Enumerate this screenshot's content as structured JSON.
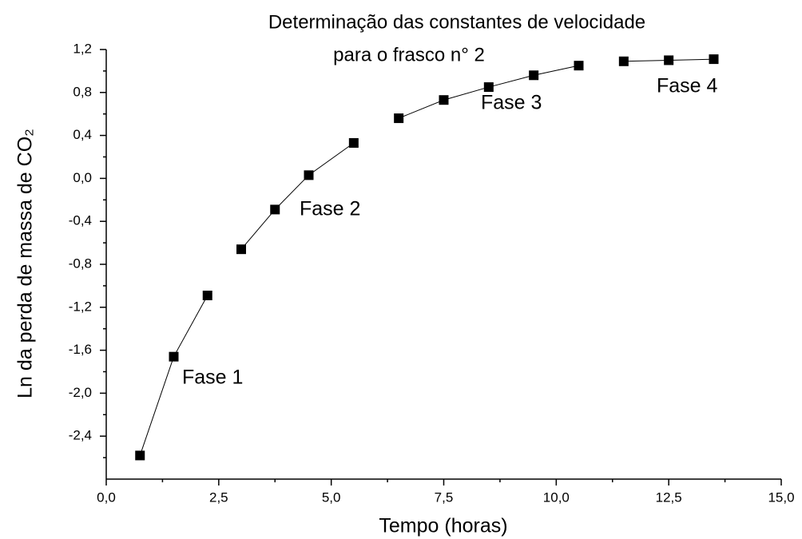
{
  "chart_data": {
    "type": "line",
    "title": [
      "Determinação das constantes de velocidade",
      "para o frasco n° 2"
    ],
    "x_label": "Tempo (horas)",
    "y_label": "Ln da perda de massa de CO₂",
    "xlim": [
      0,
      15
    ],
    "ylim": [
      -2.8,
      1.2
    ],
    "xticks": [
      {
        "value": 0,
        "label": "0,0"
      },
      {
        "value": 2.5,
        "label": "2,5"
      },
      {
        "value": 5,
        "label": "5,0"
      },
      {
        "value": 7.5,
        "label": "7,5"
      },
      {
        "value": 10,
        "label": "10,0"
      },
      {
        "value": 12.5,
        "label": "12,5"
      },
      {
        "value": 15,
        "label": "15,0"
      }
    ],
    "yticks": [
      {
        "value": -2.4,
        "label": "-2,4"
      },
      {
        "value": -2.0,
        "label": "-2,0"
      },
      {
        "value": -1.6,
        "label": "-1,6"
      },
      {
        "value": -1.2,
        "label": "-1,2"
      },
      {
        "value": -0.8,
        "label": "-0,8"
      },
      {
        "value": -0.4,
        "label": "-0,4"
      },
      {
        "value": 0,
        "label": "0,0"
      },
      {
        "value": 0.4,
        "label": "0,4"
      },
      {
        "value": 0.8,
        "label": "0,8"
      },
      {
        "value": 1.2,
        "label": "1,2"
      }
    ],
    "series": [
      {
        "name": "Fase 1",
        "color": "#000000",
        "x": [
          0.75,
          1.5,
          2.25
        ],
        "values": [
          -2.58,
          -1.66,
          -1.09
        ]
      },
      {
        "name": "Fase 2",
        "color": "#000000",
        "x": [
          3,
          3.75,
          4.5,
          5.5
        ],
        "values": [
          -0.66,
          -0.29,
          0.03,
          0.33
        ]
      },
      {
        "name": "Fase 3",
        "color": "#000000",
        "x": [
          6.5,
          7.5,
          8.5,
          9.5,
          10.5
        ],
        "values": [
          0.56,
          0.73,
          0.85,
          0.96,
          1.05
        ]
      },
      {
        "name": "Fase 4",
        "color": "#000000",
        "x": [
          11.5,
          12.5,
          13.5
        ],
        "values": [
          1.09,
          1.1,
          1.11
        ]
      }
    ]
  }
}
